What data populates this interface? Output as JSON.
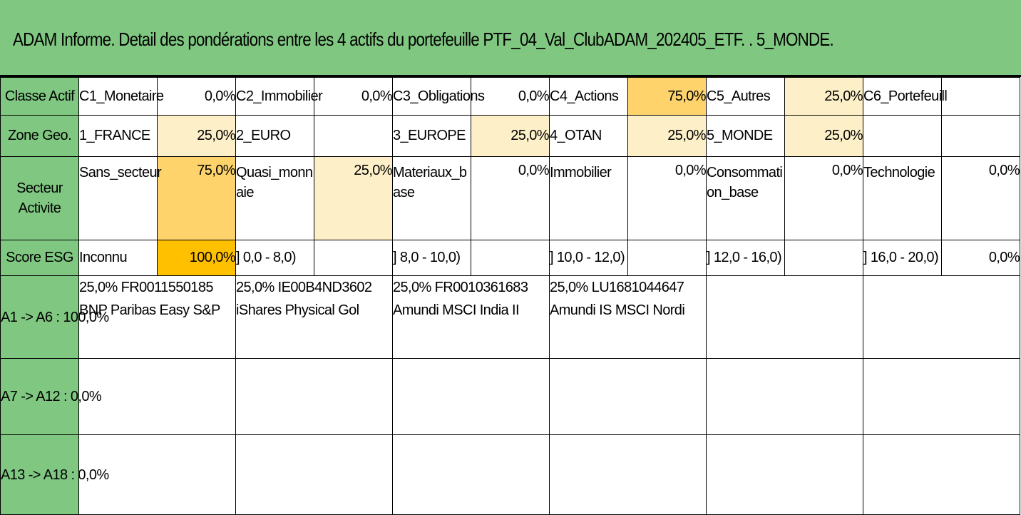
{
  "title": "ADAM Informe. Detail des pondérations entre les 4 actifs du portefeuille PTF_04_Val_ClubADAM_202405_ETF. . 5_MONDE.",
  "rows": {
    "classe": {
      "header": "Classe Actif",
      "cells": [
        {
          "label": "C1_Monetaire",
          "value": "0,0%"
        },
        {
          "label": "C2_Immobilier",
          "value": "0,0%"
        },
        {
          "label": "C3_Obligations",
          "value": "0,0%"
        },
        {
          "label": "C4_Actions",
          "value": "75,0%"
        },
        {
          "label": "C5_Autres",
          "value": "25,0%"
        },
        {
          "label": "C6_Portefeuill",
          "value": ""
        }
      ]
    },
    "zone": {
      "header": "Zone Geo.",
      "cells": [
        {
          "label": "1_FRANCE",
          "value": "25,0%"
        },
        {
          "label": "2_EURO",
          "value": ""
        },
        {
          "label": "3_EUROPE",
          "value": "25,0%"
        },
        {
          "label": "4_OTAN",
          "value": "25,0%"
        },
        {
          "label": "5_MONDE",
          "value": "25,0%"
        },
        {
          "label": "",
          "value": ""
        }
      ]
    },
    "secteur": {
      "header_line1": "Secteur",
      "header_line2": "Activite",
      "cells": [
        {
          "label": "Sans_secteur",
          "value": "75,0%"
        },
        {
          "label": "Quasi_monn aie",
          "value": "25,0%"
        },
        {
          "label": "Materiaux_b ase",
          "value": "0,0%"
        },
        {
          "label": "Immobilier",
          "value": "0,0%"
        },
        {
          "label": "Consommati on_base",
          "value": "0,0%"
        },
        {
          "label": "Technologie",
          "value": "0,0%"
        }
      ]
    },
    "esg": {
      "header": "Score ESG",
      "cells": [
        {
          "label": "Inconnu",
          "value": "100,0%"
        },
        {
          "label": "] 0,0 - 8,0)",
          "value": ""
        },
        {
          "label": "] 8,0 - 10,0)",
          "value": ""
        },
        {
          "label": "] 10,0 - 12,0)",
          "value": ""
        },
        {
          "label": "] 12,0 - 16,0)",
          "value": ""
        },
        {
          "label": "] 16,0 - 20,0)",
          "value": "0,0%"
        }
      ]
    }
  },
  "asset_groups": [
    {
      "header": "A1 -> A6 : 100,0%",
      "assets": [
        {
          "line1": "25,0% FR0011550185",
          "line2": "BNP Paribas Easy S&P"
        },
        {
          "line1": "25,0% IE00B4ND3602",
          "line2": "iShares Physical Gol"
        },
        {
          "line1": "25,0% FR0010361683",
          "line2": "Amundi MSCI India II"
        },
        {
          "line1": "25,0% LU1681044647",
          "line2": "Amundi IS MSCI Nordi"
        },
        {
          "line1": "",
          "line2": ""
        },
        {
          "line1": "",
          "line2": ""
        }
      ]
    },
    {
      "header": "A7 -> A12 : 0,0%",
      "assets": []
    },
    {
      "header": "A13 -> A18 : 0,0%",
      "assets": []
    }
  ],
  "colors": {
    "header_green": "#80c882",
    "weight_light": "#fdf0c8",
    "weight_medium": "#fed36b",
    "weight_dark": "#ffc000"
  }
}
